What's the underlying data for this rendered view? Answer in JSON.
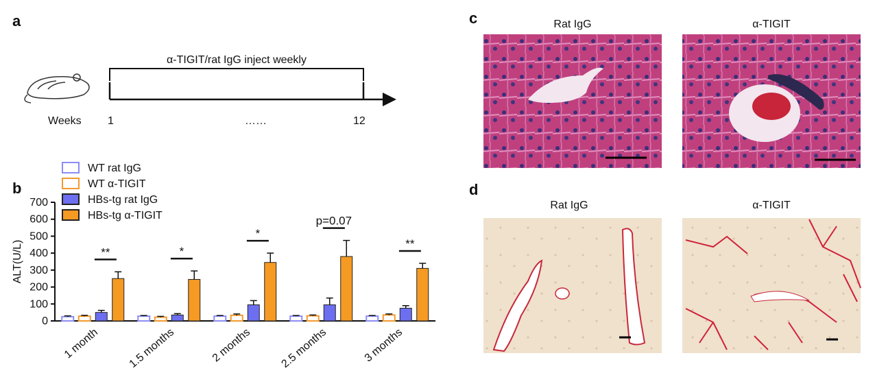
{
  "panel_labels": [
    "a",
    "b",
    "c",
    "d"
  ],
  "timeline": {
    "treatment": "α-TIGIT/rat IgG  inject weekly",
    "axis_label": "Weeks",
    "start": "1",
    "ellipsis": "……",
    "end": "12"
  },
  "chart_data": {
    "type": "bar",
    "ylabel": "ALT(U/L)",
    "categories": [
      "1 month",
      "1.5 months",
      "2 months",
      "2.5 months",
      "3 months"
    ],
    "series": [
      {
        "name": "WT rat IgG",
        "color": "#8c8cf5",
        "filled": false,
        "values": [
          25,
          28,
          28,
          28,
          28
        ],
        "errors": [
          5,
          4,
          4,
          4,
          4
        ]
      },
      {
        "name": "WT α-TIGIT",
        "color": "#f39a2e",
        "filled": false,
        "values": [
          28,
          22,
          33,
          30,
          35
        ],
        "errors": [
          5,
          5,
          8,
          5,
          6
        ]
      },
      {
        "name": "HBs-tg rat IgG",
        "color": "#6d6ff0",
        "filled": true,
        "values": [
          50,
          35,
          95,
          95,
          75
        ],
        "errors": [
          12,
          8,
          25,
          40,
          15
        ]
      },
      {
        "name": "HBs-tg α-TIGIT",
        "color": "#f59a23",
        "filled": true,
        "values": [
          250,
          245,
          345,
          380,
          310
        ],
        "errors": [
          40,
          50,
          55,
          95,
          30
        ]
      }
    ],
    "annotations": [
      "**",
      "*",
      "*",
      "p=0.07",
      "**"
    ],
    "ylim": [
      0,
      700
    ],
    "yticks": [
      0,
      100,
      200,
      300,
      400,
      500,
      600,
      700
    ]
  },
  "images": {
    "c": {
      "left_title": "Rat IgG",
      "right_title": "α-TIGIT"
    },
    "d": {
      "left_title": "Rat IgG",
      "right_title": "α-TIGIT"
    }
  }
}
